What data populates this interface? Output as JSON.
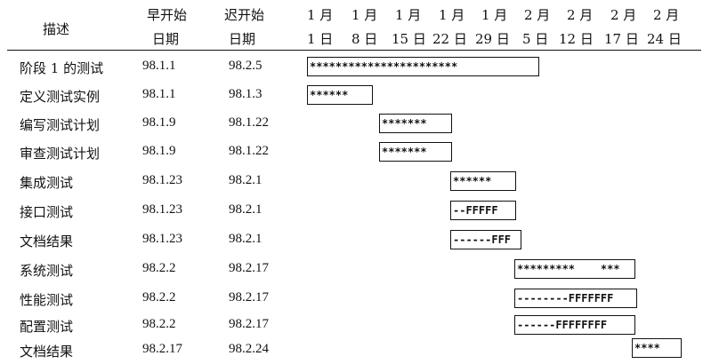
{
  "header": {
    "desc": "描述",
    "early_line1": "早开始",
    "early_line2": "日期",
    "late_line1": "迟开始",
    "late_line2": "日期",
    "dates": [
      {
        "month": "1 月",
        "day": "1 日"
      },
      {
        "month": "1 月",
        "day": "8 日"
      },
      {
        "month": "1 月",
        "day": "15 日"
      },
      {
        "month": "1 月",
        "day": "22 日"
      },
      {
        "month": "1 月",
        "day": "29 日"
      },
      {
        "month": "2 月",
        "day": "5 日"
      },
      {
        "month": "2 月",
        "day": "12 日"
      },
      {
        "month": "2 月",
        "day": "17 日"
      },
      {
        "month": "2 月",
        "day": "24 日"
      }
    ]
  },
  "rows": [
    {
      "desc": "阶段 1 的测试",
      "early": "98.1.1",
      "late": "98.2.5",
      "bar": "***********************"
    },
    {
      "desc": "定义测试实例",
      "early": "98.1.1",
      "late": "98.1.3",
      "bar": "******"
    },
    {
      "desc": "编写测试计划",
      "early": "98.1.9",
      "late": "98.1.22",
      "bar": "*******"
    },
    {
      "desc": "审查测试计划",
      "early": "98.1.9",
      "late": "98.1.22",
      "bar": "*******"
    },
    {
      "desc": "集成测试",
      "early": "98.1.23",
      "late": "98.2.1",
      "bar": "******"
    },
    {
      "desc": "接口测试",
      "early": "98.1.23",
      "late": "98.2.1",
      "bar": "--FFFFF"
    },
    {
      "desc": "文档结果",
      "early": "98.1.23",
      "late": "98.2.1",
      "bar": "------FFF"
    },
    {
      "desc": "系统测试",
      "early": "98.2.2",
      "late": "98.2.17",
      "bar": "*********    ***"
    },
    {
      "desc": "性能测试",
      "early": "98.2.2",
      "late": "98.2.17",
      "bar": "--------FFFFFFF"
    },
    {
      "desc": "配置测试",
      "early": "98.2.2",
      "late": "98.2.17",
      "bar": "------FFFFFFFF"
    },
    {
      "desc": "文档结果",
      "early": "98.2.17",
      "late": "98.2.24",
      "bar": "****"
    }
  ]
}
